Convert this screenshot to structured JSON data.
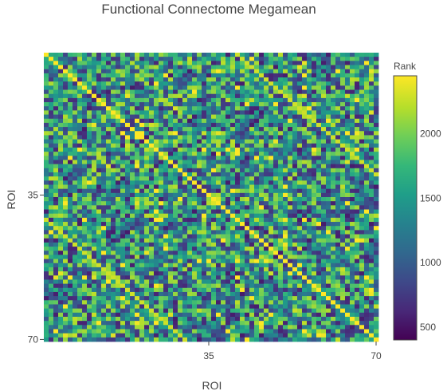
{
  "chart_data": {
    "type": "heatmap",
    "title": "Functional Connectome Megamean",
    "xlabel": "ROI",
    "ylabel": "ROI",
    "n": 70,
    "x_ticks": [
      35,
      70
    ],
    "y_ticks": [
      35,
      70
    ],
    "y_reversed": true,
    "colorscale": "Viridis",
    "colorbar": {
      "title": "Rank",
      "range": [
        400,
        2450
      ],
      "ticks": [
        500,
        1000,
        1500,
        2000
      ]
    },
    "diagonal_value": 2450,
    "secondary_diagonal_offset": 40,
    "secondary_diagonal_value": 2300,
    "grid": false,
    "legend": "right"
  }
}
